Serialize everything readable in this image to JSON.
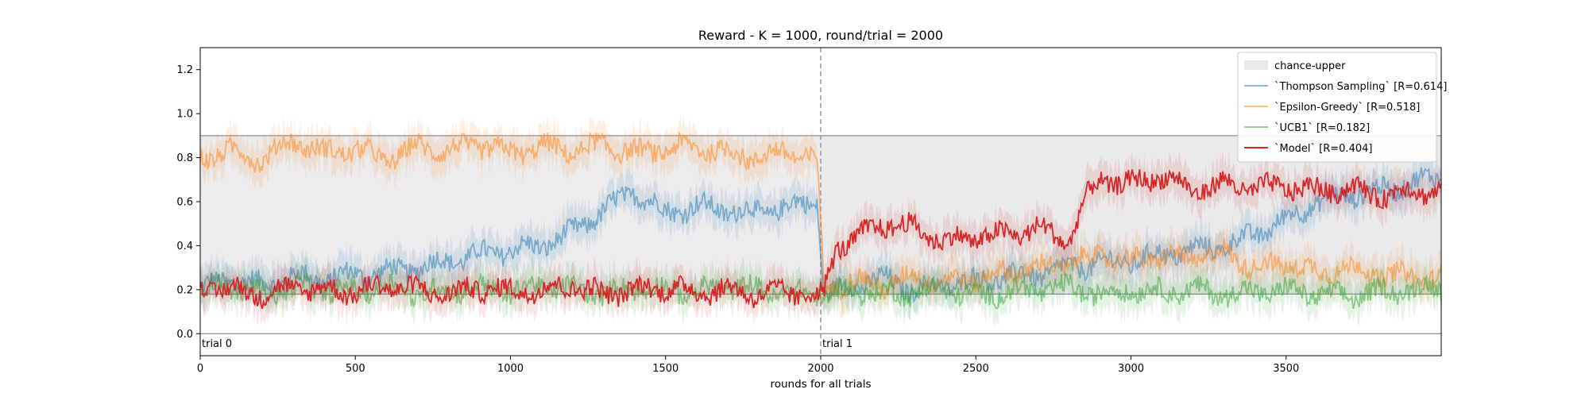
{
  "chart_data": {
    "type": "line",
    "title": "Reward - K = 1000, round/trial = 2000",
    "xlabel": "rounds for all trials",
    "ylabel": "",
    "xlim": [
      0,
      4000
    ],
    "ylim": [
      -0.1,
      1.3
    ],
    "xticks": [
      0,
      500,
      1000,
      1500,
      2000,
      2500,
      3000,
      3500
    ],
    "yticks": [
      0.0,
      0.2,
      0.4,
      0.6,
      0.8,
      1.0,
      1.2
    ],
    "grid": false,
    "legend_position": "top-right",
    "band": {
      "name": "chance-upper",
      "lower": 0.18,
      "upper": 0.9,
      "color": "#d9d9d9",
      "note": "first trial band drawn lighter"
    },
    "reference_lines": [
      0.0,
      0.18,
      0.9
    ],
    "trial_separators": [
      {
        "x": 0,
        "label": "trial 0"
      },
      {
        "x": 2000,
        "label": "trial 1"
      }
    ],
    "series": [
      {
        "name": "`Thompson Sampling` [R=0.614]",
        "color": "#1f77b4",
        "opacity": 0.5,
        "x": [
          0,
          100,
          200,
          300,
          400,
          500,
          600,
          700,
          800,
          900,
          1000,
          1100,
          1200,
          1300,
          1400,
          1500,
          1600,
          1700,
          1800,
          1900,
          1990,
          2010,
          2100,
          2200,
          2300,
          2400,
          2500,
          2600,
          2700,
          2800,
          2900,
          3000,
          3100,
          3200,
          3300,
          3400,
          3500,
          3600,
          3700,
          3800,
          3900,
          4000
        ],
        "y": [
          0.2,
          0.25,
          0.22,
          0.26,
          0.25,
          0.27,
          0.28,
          0.3,
          0.33,
          0.36,
          0.38,
          0.4,
          0.46,
          0.56,
          0.65,
          0.55,
          0.58,
          0.56,
          0.55,
          0.58,
          0.6,
          0.17,
          0.22,
          0.25,
          0.2,
          0.22,
          0.24,
          0.26,
          0.27,
          0.3,
          0.32,
          0.33,
          0.36,
          0.38,
          0.4,
          0.45,
          0.52,
          0.6,
          0.63,
          0.65,
          0.68,
          0.72
        ]
      },
      {
        "name": "`Epsilon-Greedy` [R=0.518]",
        "color": "#ff7f0e",
        "opacity": 0.5,
        "x": [
          0,
          100,
          200,
          300,
          400,
          500,
          600,
          700,
          800,
          900,
          1000,
          1100,
          1200,
          1300,
          1400,
          1500,
          1600,
          1700,
          1800,
          1900,
          1990,
          2010,
          2100,
          2200,
          2300,
          2400,
          2500,
          2600,
          2700,
          2800,
          2900,
          3000,
          3100,
          3200,
          3300,
          3400,
          3500,
          3600,
          3700,
          3800,
          3900,
          4000
        ],
        "y": [
          0.8,
          0.83,
          0.79,
          0.88,
          0.82,
          0.84,
          0.79,
          0.85,
          0.83,
          0.86,
          0.82,
          0.85,
          0.83,
          0.86,
          0.82,
          0.84,
          0.85,
          0.82,
          0.8,
          0.83,
          0.78,
          0.2,
          0.24,
          0.22,
          0.26,
          0.24,
          0.25,
          0.28,
          0.3,
          0.32,
          0.36,
          0.33,
          0.35,
          0.34,
          0.37,
          0.3,
          0.32,
          0.28,
          0.3,
          0.27,
          0.26,
          0.25
        ]
      },
      {
        "name": "`UCB1` [R=0.182]",
        "color": "#2ca02c",
        "opacity": 0.5,
        "x": [
          0,
          100,
          200,
          300,
          400,
          500,
          600,
          700,
          800,
          900,
          1000,
          1100,
          1200,
          1300,
          1400,
          1500,
          1600,
          1700,
          1800,
          1900,
          1990,
          2010,
          2100,
          2200,
          2300,
          2400,
          2500,
          2600,
          2700,
          2800,
          2900,
          3000,
          3100,
          3200,
          3300,
          3400,
          3500,
          3600,
          3700,
          3800,
          3900,
          4000
        ],
        "y": [
          0.2,
          0.22,
          0.18,
          0.21,
          0.2,
          0.19,
          0.22,
          0.18,
          0.2,
          0.21,
          0.19,
          0.22,
          0.2,
          0.18,
          0.21,
          0.2,
          0.19,
          0.22,
          0.2,
          0.18,
          0.19,
          0.17,
          0.2,
          0.18,
          0.19,
          0.2,
          0.17,
          0.19,
          0.2,
          0.21,
          0.18,
          0.2,
          0.19,
          0.2,
          0.18,
          0.19,
          0.2,
          0.18,
          0.17,
          0.19,
          0.2,
          0.21
        ]
      },
      {
        "name": "`Model` [R=0.404]",
        "color": "#d62728",
        "opacity": 1,
        "x": [
          0,
          100,
          200,
          300,
          400,
          500,
          600,
          700,
          800,
          900,
          1000,
          1100,
          1200,
          1300,
          1400,
          1500,
          1600,
          1700,
          1800,
          1900,
          1990,
          2010,
          2050,
          2100,
          2200,
          2300,
          2400,
          2500,
          2600,
          2700,
          2800,
          2850,
          2900,
          3000,
          3100,
          3200,
          3300,
          3400,
          3500,
          3600,
          3700,
          3800,
          3900,
          4000
        ],
        "y": [
          0.22,
          0.2,
          0.18,
          0.21,
          0.2,
          0.19,
          0.22,
          0.2,
          0.18,
          0.21,
          0.19,
          0.2,
          0.22,
          0.18,
          0.2,
          0.21,
          0.19,
          0.2,
          0.18,
          0.19,
          0.17,
          0.18,
          0.4,
          0.42,
          0.5,
          0.48,
          0.42,
          0.44,
          0.45,
          0.48,
          0.42,
          0.6,
          0.7,
          0.68,
          0.72,
          0.65,
          0.68,
          0.66,
          0.67,
          0.65,
          0.66,
          0.63,
          0.65,
          0.65
        ]
      }
    ]
  }
}
